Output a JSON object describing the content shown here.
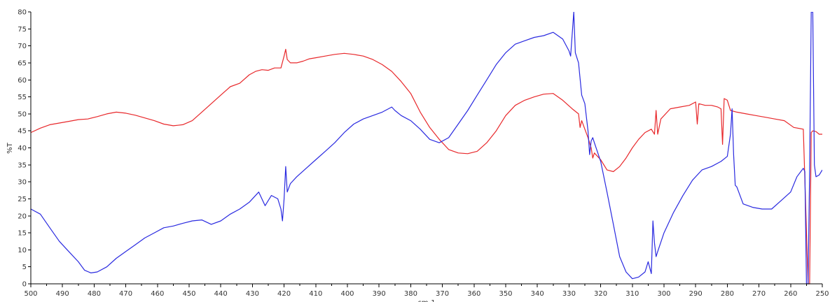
{
  "chart_data": {
    "type": "line",
    "title": "",
    "xlabel": "cm-1",
    "ylabel": "%T",
    "xlim": [
      500,
      250
    ],
    "ylim": [
      0,
      80
    ],
    "x_reversed": true,
    "grid": false,
    "x_ticks": [
      500,
      490,
      480,
      470,
      460,
      450,
      440,
      430,
      420,
      410,
      400,
      390,
      380,
      370,
      360,
      350,
      340,
      330,
      320,
      310,
      300,
      290,
      280,
      270,
      260,
      250
    ],
    "y_ticks": [
      0,
      5,
      10,
      15,
      20,
      25,
      30,
      35,
      40,
      45,
      50,
      55,
      60,
      65,
      70,
      75,
      80
    ],
    "series": [
      {
        "color": "#e8282b",
        "x": [
          500,
          497,
          494,
          491,
          488,
          485,
          482,
          479,
          476,
          473,
          470,
          467,
          464,
          461,
          458,
          455,
          452,
          449,
          446,
          443,
          440,
          437,
          434,
          431,
          429,
          427,
          425,
          423,
          421,
          420,
          419.5,
          419,
          418,
          416,
          414,
          412,
          410,
          407,
          404,
          401,
          398,
          395,
          392,
          389,
          386,
          383,
          380,
          377,
          374,
          371,
          368,
          365,
          362,
          359,
          356,
          353,
          350,
          347,
          344,
          341,
          338,
          335,
          332,
          329,
          327,
          326.5,
          326,
          324,
          323,
          322.5,
          322,
          320,
          318,
          316,
          314,
          312,
          310,
          308,
          306,
          304,
          303,
          302.5,
          302,
          301,
          298,
          295,
          292,
          290,
          289.5,
          289,
          287,
          285,
          283,
          282,
          281.5,
          281,
          280,
          279,
          277,
          274,
          271,
          268,
          265,
          262,
          259,
          256,
          254.5,
          254,
          253.5,
          253,
          252,
          251,
          250
        ],
        "y": [
          44.5,
          45.8,
          46.8,
          47.3,
          47.8,
          48.3,
          48.5,
          49.2,
          50.0,
          50.5,
          50.2,
          49.6,
          48.8,
          48.0,
          47.0,
          46.5,
          46.8,
          48.0,
          50.5,
          53.0,
          55.5,
          58.0,
          59.0,
          61.5,
          62.5,
          63.0,
          62.8,
          63.5,
          63.5,
          67.0,
          69.0,
          66.0,
          65.0,
          65.0,
          65.5,
          66.2,
          66.5,
          67.0,
          67.5,
          67.8,
          67.5,
          67.0,
          66.0,
          64.5,
          62.5,
          59.5,
          56.0,
          50.5,
          46.0,
          42.5,
          39.5,
          38.5,
          38.3,
          39.0,
          41.5,
          45.0,
          49.5,
          52.5,
          54.0,
          55.0,
          55.8,
          56.0,
          54.0,
          51.5,
          50.0,
          46.0,
          48.0,
          43.0,
          40.0,
          37.0,
          38.5,
          36.5,
          33.5,
          33.0,
          34.5,
          37.0,
          40.0,
          42.5,
          44.5,
          45.5,
          44.0,
          51.0,
          44.0,
          48.5,
          51.5,
          52.0,
          52.5,
          53.5,
          47.0,
          53.0,
          52.5,
          52.5,
          52.0,
          51.5,
          41.0,
          54.5,
          54.0,
          51.0,
          50.5,
          50.0,
          49.5,
          49.0,
          48.5,
          48.0,
          46.0,
          45.5,
          0,
          0,
          44.5,
          45.0,
          44.8,
          44.0,
          44.0
        ]
      },
      {
        "color": "#2a2ae0",
        "x": [
          500,
          497,
          494,
          491,
          488,
          485,
          483,
          481,
          479,
          476,
          473,
          470,
          467,
          464,
          461,
          458,
          455,
          452,
          449,
          446,
          443,
          440,
          437,
          434,
          431,
          428,
          426,
          424,
          422,
          421,
          420.5,
          420,
          419.5,
          419,
          418,
          416,
          413,
          410,
          407,
          404,
          401,
          398,
          395,
          392,
          389,
          386,
          385,
          383,
          380,
          377,
          374,
          371,
          368,
          365,
          362,
          359,
          356,
          353,
          350,
          347,
          344,
          341,
          338,
          335,
          332,
          330,
          329.5,
          328.5,
          328,
          327,
          326,
          325,
          324,
          323.5,
          323,
          322.5,
          322,
          320,
          318,
          316,
          314,
          312,
          310,
          308,
          306,
          305,
          304,
          303.5,
          303,
          302.5,
          302,
          300,
          297,
          294,
          291,
          288,
          285,
          282,
          280,
          279,
          278.5,
          278,
          277.5,
          277,
          275,
          272,
          269,
          266,
          263,
          260,
          258,
          256,
          255.5,
          255,
          254.5,
          254,
          253.5,
          253,
          252.5,
          252,
          251,
          250
        ],
        "y": [
          22.0,
          20.5,
          16.5,
          12.5,
          9.5,
          6.5,
          4.0,
          3.2,
          3.5,
          5.0,
          7.5,
          9.5,
          11.5,
          13.5,
          15.0,
          16.5,
          17.0,
          17.8,
          18.5,
          18.8,
          17.5,
          18.5,
          20.5,
          22.0,
          24.0,
          27.0,
          23.0,
          26.0,
          25.0,
          22.0,
          18.5,
          25.0,
          34.5,
          27.0,
          29.5,
          31.5,
          34.0,
          36.5,
          39.0,
          41.5,
          44.5,
          47.0,
          48.5,
          49.5,
          50.5,
          52.0,
          51.0,
          49.5,
          48.0,
          45.5,
          42.5,
          41.5,
          43.0,
          47.0,
          51.0,
          55.5,
          60.0,
          64.5,
          68.0,
          70.5,
          71.5,
          72.5,
          73.0,
          74.0,
          72.0,
          68.5,
          67.0,
          80,
          68.0,
          65.0,
          55.5,
          53.0,
          45.0,
          38.0,
          42.0,
          43.0,
          41.5,
          36.0,
          27.0,
          17.5,
          8.0,
          3.5,
          1.5,
          2.0,
          3.5,
          6.5,
          3.0,
          18.5,
          12.0,
          8.0,
          9.5,
          15.0,
          21.0,
          26.0,
          30.5,
          33.5,
          34.5,
          36.0,
          37.5,
          44.0,
          51.5,
          38.0,
          29.0,
          28.5,
          23.5,
          22.5,
          22.0,
          22.0,
          24.5,
          27.0,
          31.5,
          34.0,
          33.0,
          0,
          0,
          33.0,
          80,
          80,
          35.0,
          31.5,
          32.0,
          33.5
        ]
      }
    ]
  }
}
